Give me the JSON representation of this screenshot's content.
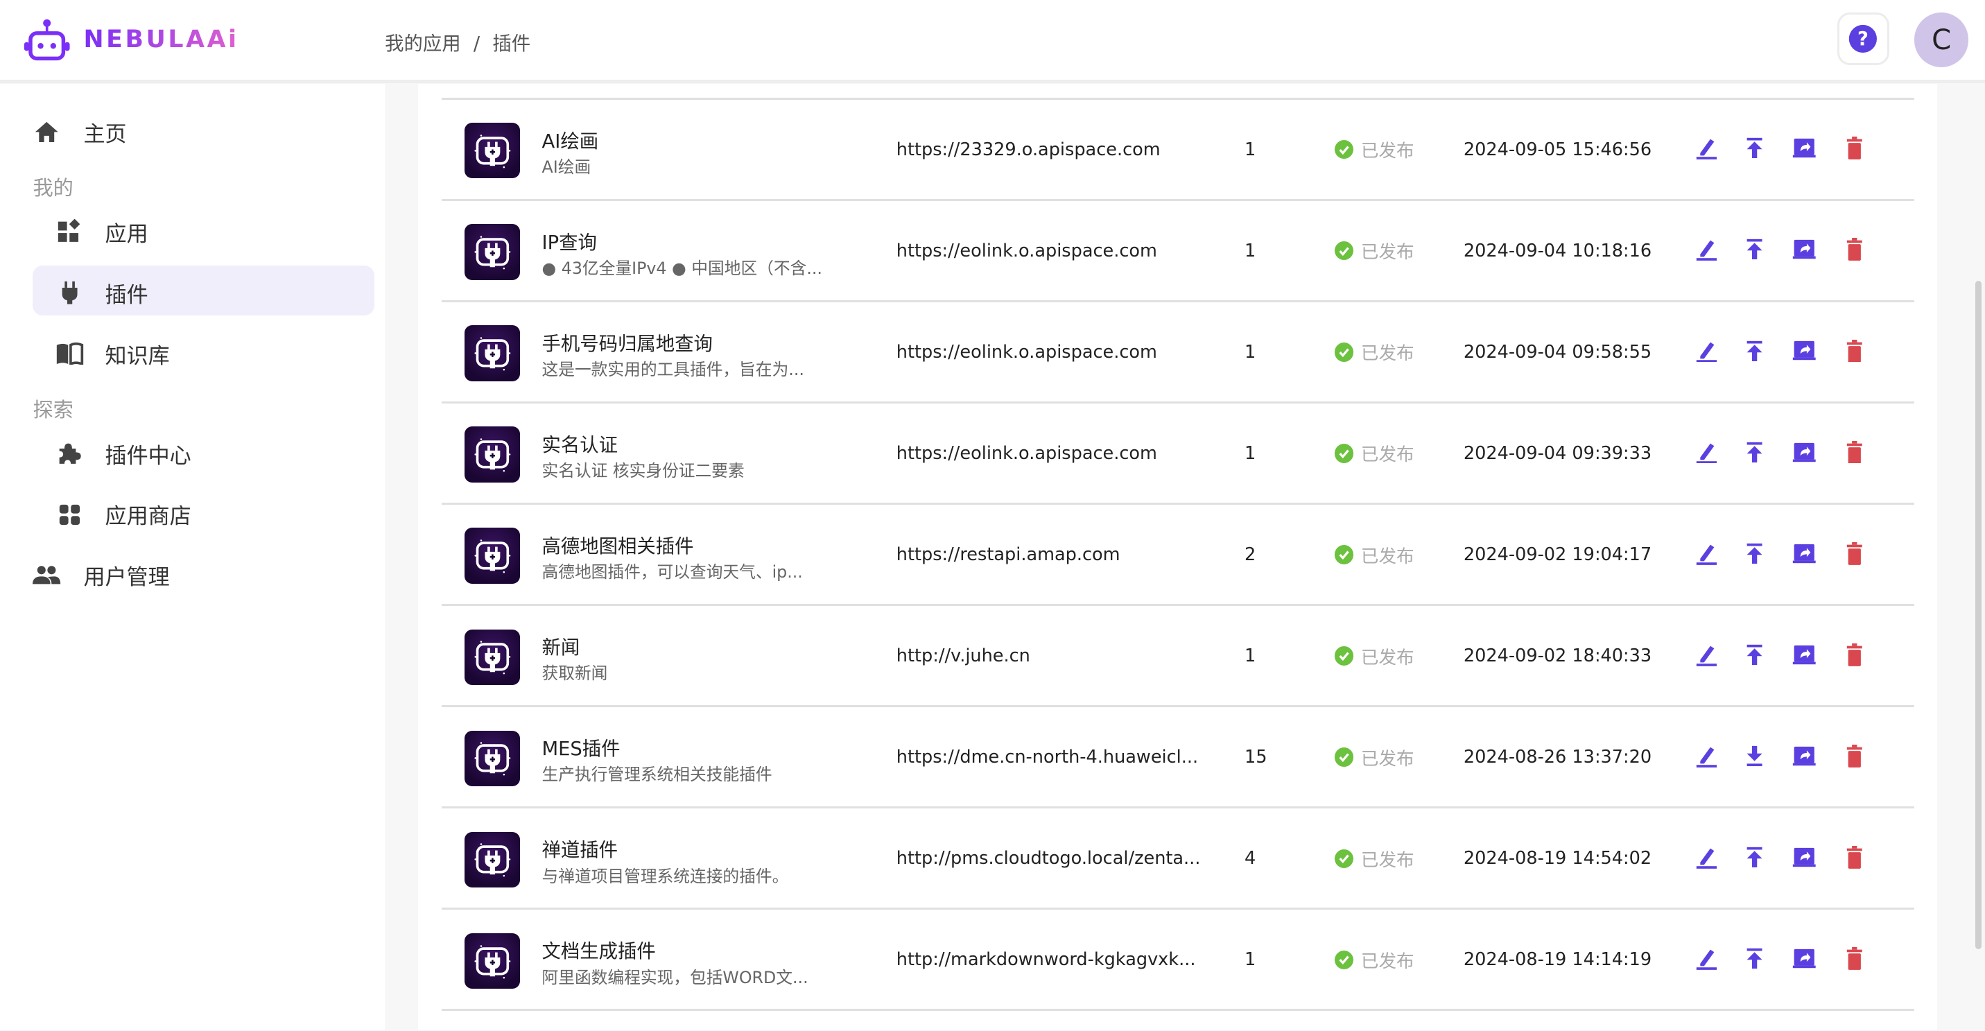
{
  "header": {
    "logo_text": "NEBULAAi",
    "breadcrumb": [
      "我的应用",
      "插件"
    ],
    "breadcrumb_separator": "/",
    "help_icon": "help-circle-icon",
    "avatar_letter": "C"
  },
  "colors": {
    "accent": "#5b3fe0",
    "danger": "#d9474f",
    "success": "#6cc13f",
    "active_bg": "#f0eefb",
    "avatar_bg": "#d1c4e9"
  },
  "sidebar": {
    "home": {
      "label": "主页",
      "icon": "home-icon"
    },
    "group_mine": "我的",
    "mine_items": [
      {
        "label": "应用",
        "icon": "widgets-icon"
      },
      {
        "label": "插件",
        "icon": "plug-icon",
        "active": true
      },
      {
        "label": "知识库",
        "icon": "book-icon"
      }
    ],
    "group_explore": "探索",
    "explore_items": [
      {
        "label": "插件中心",
        "icon": "puzzle-icon"
      },
      {
        "label": "应用商店",
        "icon": "grid-icon"
      }
    ],
    "users": {
      "label": "用户管理",
      "icon": "people-icon"
    }
  },
  "plugins": [
    {
      "name": "AI绘画",
      "desc": "AI绘画",
      "url": "https://23329.o.apispace.com",
      "count": "1",
      "status": "已发布",
      "date": "2024-09-05 15:46:56",
      "publish_action": "upload"
    },
    {
      "name": "IP查询",
      "desc": "● 43亿全量IPv4 ● 中国地区（不含...",
      "url": "https://eolink.o.apispace.com",
      "count": "1",
      "status": "已发布",
      "date": "2024-09-04 10:18:16",
      "publish_action": "upload"
    },
    {
      "name": "手机号码归属地查询",
      "desc": "这是一款实用的工具插件，旨在为...",
      "url": "https://eolink.o.apispace.com",
      "count": "1",
      "status": "已发布",
      "date": "2024-09-04 09:58:55",
      "publish_action": "upload"
    },
    {
      "name": "实名认证",
      "desc": "实名认证 核实身份证二要素",
      "url": "https://eolink.o.apispace.com",
      "count": "1",
      "status": "已发布",
      "date": "2024-09-04 09:39:33",
      "publish_action": "upload"
    },
    {
      "name": "高德地图相关插件",
      "desc": "高德地图插件，可以查询天气、ip...",
      "url": "https://restapi.amap.com",
      "count": "2",
      "status": "已发布",
      "date": "2024-09-02 19:04:17",
      "publish_action": "upload"
    },
    {
      "name": "新闻",
      "desc": "获取新闻",
      "url": "http://v.juhe.cn",
      "count": "1",
      "status": "已发布",
      "date": "2024-09-02 18:40:33",
      "publish_action": "upload"
    },
    {
      "name": "MES插件",
      "desc": "生产执行管理系统相关技能插件",
      "url": "https://dme.cn-north-4.huaweicl...",
      "count": "15",
      "status": "已发布",
      "date": "2024-08-26 13:37:20",
      "publish_action": "download"
    },
    {
      "name": "禅道插件",
      "desc": "与禅道项目管理系统连接的插件。",
      "url": "http://pms.cloudtogo.local/zenta...",
      "count": "4",
      "status": "已发布",
      "date": "2024-08-19 14:54:02",
      "publish_action": "upload"
    },
    {
      "name": "文档生成插件",
      "desc": "阿里函数编程实现，包括WORD文...",
      "url": "http://markdownword-kgkagvxk...",
      "count": "1",
      "status": "已发布",
      "date": "2024-08-19 14:14:19",
      "publish_action": "upload"
    }
  ]
}
